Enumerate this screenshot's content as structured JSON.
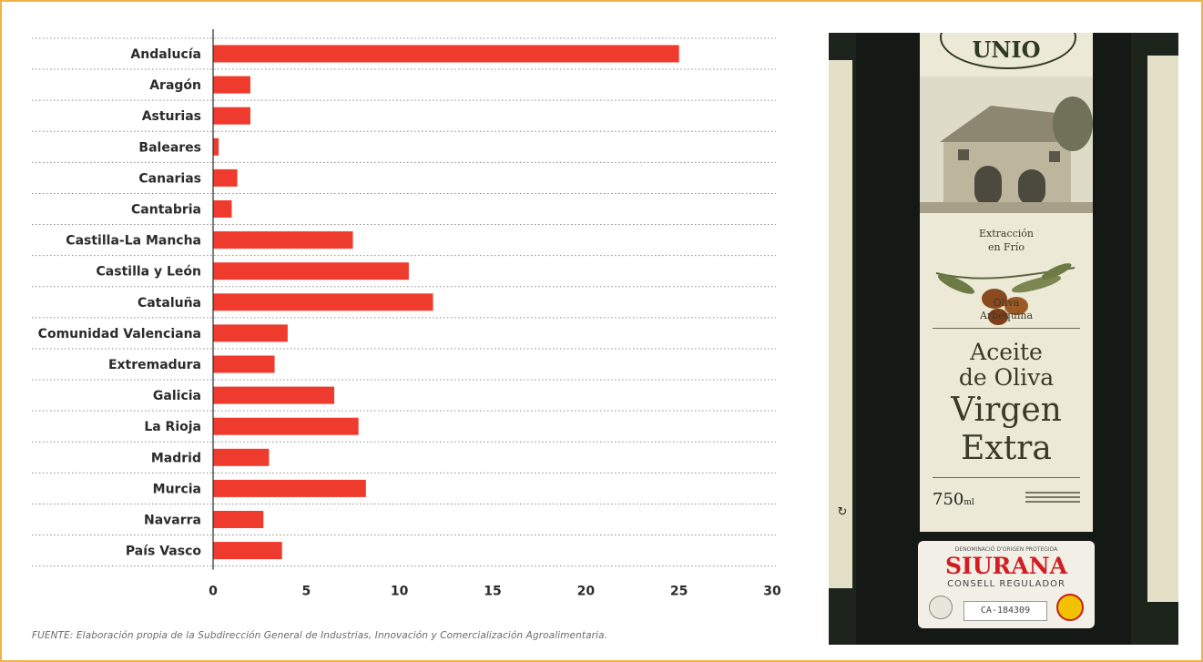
{
  "chart_data": {
    "type": "bar",
    "orientation": "horizontal",
    "categories": [
      "Andalucía",
      "Aragón",
      "Asturias",
      "Baleares",
      "Canarias",
      "Cantabria",
      "Castilla-La Mancha",
      "Castilla y León",
      "Cataluña",
      "Comunidad Valenciana",
      "Extremadura",
      "Galicia",
      "La Rioja",
      "Madrid",
      "Murcia",
      "Navarra",
      "País Vasco"
    ],
    "values": [
      25,
      2,
      2,
      0.3,
      1.3,
      1,
      7.5,
      10.5,
      11.8,
      4,
      3.3,
      6.5,
      7.8,
      3,
      8.2,
      2.7,
      3.7
    ],
    "xlim": [
      0,
      30
    ],
    "xticks": [
      "0",
      "5",
      "10",
      "15",
      "20",
      "25",
      "30"
    ],
    "grid": "horizontal-dotted",
    "bar_color": "#ee3b2e",
    "title": "",
    "xlabel": "",
    "ylabel": ""
  },
  "source_note": "FUENTE: Elaboración propia de la Subdirección General de Industrias, Innovación y Comercialización Agroalimentaria.",
  "photo": {
    "label_top": "UNIO",
    "extraction_line1": "Extracción",
    "extraction_line2": "en Frío",
    "variety_line1": "Oliva",
    "variety_line2": "Arbequina",
    "product_line1": "Aceite",
    "product_line2": "de Oliva",
    "product_line3": "Virgen",
    "product_line4": "Extra",
    "volume": "750",
    "volume_unit": "ml",
    "do_heading": "DENOMINACIÓ D'ORIGEN PROTEGIDA",
    "do_name": "SIURANA",
    "do_council": "CONSELL REGULADOR",
    "do_code": "CA-184309"
  }
}
